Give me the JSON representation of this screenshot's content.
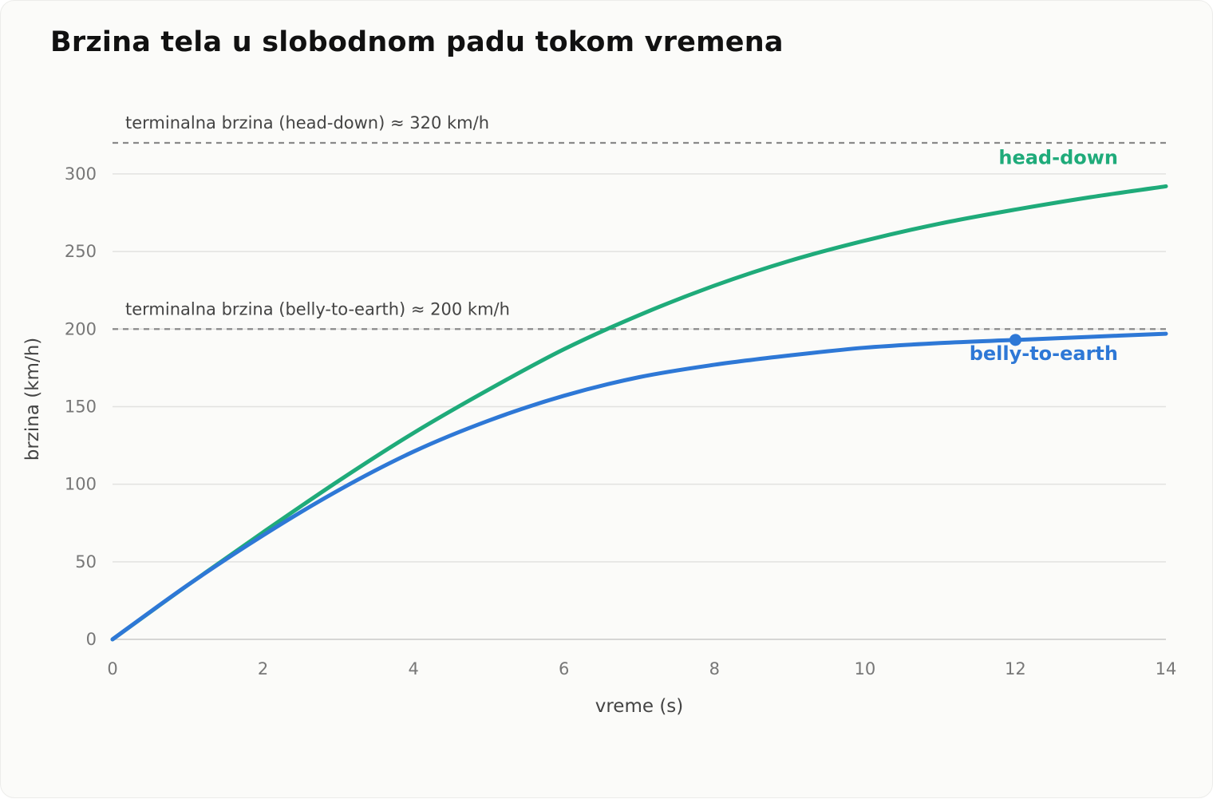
{
  "chart_data": {
    "type": "line",
    "title": "Brzina tela u slobodnom padu tokom vremena",
    "xlabel": "vreme (s)",
    "ylabel": "brzina (km/h)",
    "xlim": [
      0,
      14
    ],
    "ylim": [
      0,
      320
    ],
    "x_ticks": [
      0,
      2,
      4,
      6,
      8,
      10,
      12,
      14
    ],
    "y_ticks": [
      0,
      50,
      100,
      150,
      200,
      250,
      300
    ],
    "grid": "horizontal",
    "legend": "direct labels at line ends",
    "reference_lines": [
      {
        "label": "terminalna brzina (head-down) ≈ 320 km/h",
        "y": 320,
        "style": "dashed",
        "color": "#8a8a8a"
      },
      {
        "label": "terminalna brzina (belly-to-earth) ≈ 200 km/h",
        "y": 200,
        "style": "dashed",
        "color": "#8a8a8a"
      }
    ],
    "x": [
      0,
      1,
      2,
      3,
      4,
      5,
      6,
      7,
      8,
      9,
      10,
      11,
      12,
      13,
      14
    ],
    "series": [
      {
        "name": "head-down",
        "color": "#1fab7a",
        "values": [
          0,
          35,
          69,
          102,
          133,
          161,
          187,
          209,
          228,
          244,
          257,
          268,
          277,
          285,
          292
        ]
      },
      {
        "name": "belly-to-earth",
        "color": "#2e78d6",
        "values": [
          0,
          35,
          67,
          96,
          121,
          141,
          157,
          169,
          177,
          183,
          188,
          191,
          193,
          195,
          197
        ],
        "marker": {
          "x": 12,
          "y": 193
        }
      }
    ]
  }
}
